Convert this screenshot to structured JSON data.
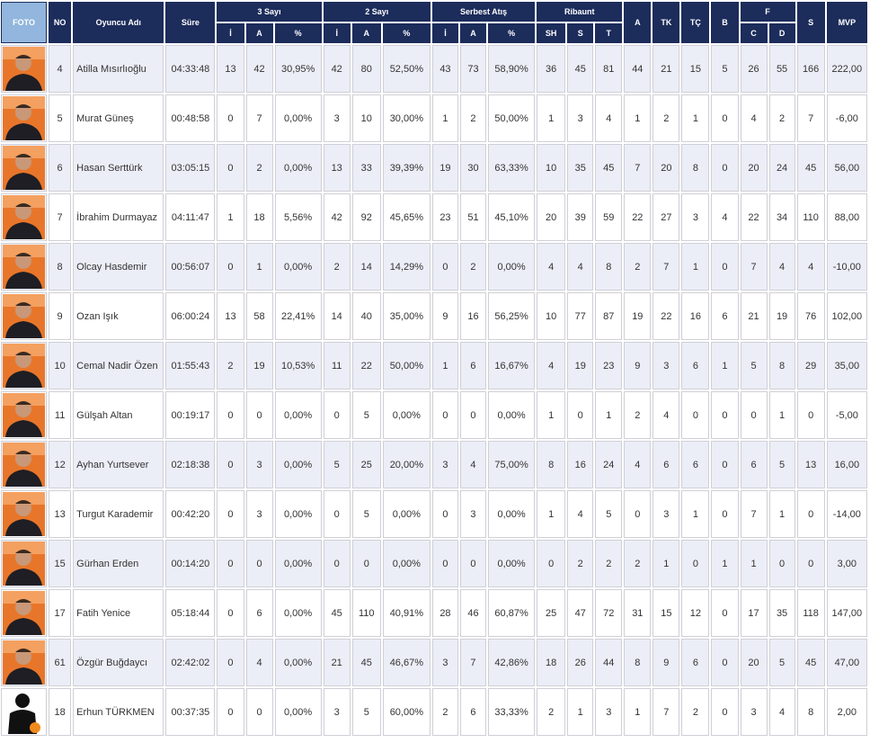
{
  "header": {
    "foto": "FOTO",
    "no": "NO",
    "name": "Oyuncu Adı",
    "time": "Süre",
    "groups": [
      "3 Sayı",
      "2 Sayı",
      "Serbest Atış",
      "Ribaunt"
    ],
    "single": [
      "A",
      "TK",
      "TÇ",
      "B"
    ],
    "fouls": "F",
    "s": "S",
    "mvp": "MVP",
    "sub": [
      "İ",
      "A",
      "%",
      "İ",
      "A",
      "%",
      "İ",
      "A",
      "%",
      "SH",
      "S",
      "T"
    ],
    "foulSub": [
      "C",
      "D"
    ]
  },
  "rows": [
    [
      "4",
      "Atilla Mısırlıoğlu",
      "04:33:48",
      "13",
      "42",
      "30,95%",
      "42",
      "80",
      "52,50%",
      "43",
      "73",
      "58,90%",
      "36",
      "45",
      "81",
      "44",
      "21",
      "15",
      "5",
      "26",
      "55",
      "166",
      "222,00"
    ],
    [
      "5",
      "Murat Güneş",
      "00:48:58",
      "0",
      "7",
      "0,00%",
      "3",
      "10",
      "30,00%",
      "1",
      "2",
      "50,00%",
      "1",
      "3",
      "4",
      "1",
      "2",
      "1",
      "0",
      "4",
      "2",
      "7",
      "-6,00"
    ],
    [
      "6",
      "Hasan Serttürk",
      "03:05:15",
      "0",
      "2",
      "0,00%",
      "13",
      "33",
      "39,39%",
      "19",
      "30",
      "63,33%",
      "10",
      "35",
      "45",
      "7",
      "20",
      "8",
      "0",
      "20",
      "24",
      "45",
      "56,00"
    ],
    [
      "7",
      "İbrahim Durmayaz",
      "04:11:47",
      "1",
      "18",
      "5,56%",
      "42",
      "92",
      "45,65%",
      "23",
      "51",
      "45,10%",
      "20",
      "39",
      "59",
      "22",
      "27",
      "3",
      "4",
      "22",
      "34",
      "110",
      "88,00"
    ],
    [
      "8",
      "Olcay Hasdemir",
      "00:56:07",
      "0",
      "1",
      "0,00%",
      "2",
      "14",
      "14,29%",
      "0",
      "2",
      "0,00%",
      "4",
      "4",
      "8",
      "2",
      "7",
      "1",
      "0",
      "7",
      "4",
      "4",
      "-10,00"
    ],
    [
      "9",
      "Ozan Işık",
      "06:00:24",
      "13",
      "58",
      "22,41%",
      "14",
      "40",
      "35,00%",
      "9",
      "16",
      "56,25%",
      "10",
      "77",
      "87",
      "19",
      "22",
      "16",
      "6",
      "21",
      "19",
      "76",
      "102,00"
    ],
    [
      "10",
      "Cemal Nadir Özen",
      "01:55:43",
      "2",
      "19",
      "10,53%",
      "11",
      "22",
      "50,00%",
      "1",
      "6",
      "16,67%",
      "4",
      "19",
      "23",
      "9",
      "3",
      "6",
      "1",
      "5",
      "8",
      "29",
      "35,00"
    ],
    [
      "11",
      "Gülşah Altan",
      "00:19:17",
      "0",
      "0",
      "0,00%",
      "0",
      "5",
      "0,00%",
      "0",
      "0",
      "0,00%",
      "1",
      "0",
      "1",
      "2",
      "4",
      "0",
      "0",
      "0",
      "1",
      "0",
      "-5,00"
    ],
    [
      "12",
      "Ayhan Yurtsever",
      "02:18:38",
      "0",
      "3",
      "0,00%",
      "5",
      "25",
      "20,00%",
      "3",
      "4",
      "75,00%",
      "8",
      "16",
      "24",
      "4",
      "6",
      "6",
      "0",
      "6",
      "5",
      "13",
      "16,00"
    ],
    [
      "13",
      "Turgut Karademir",
      "00:42:20",
      "0",
      "3",
      "0,00%",
      "0",
      "5",
      "0,00%",
      "0",
      "3",
      "0,00%",
      "1",
      "4",
      "5",
      "0",
      "3",
      "1",
      "0",
      "7",
      "1",
      "0",
      "-14,00"
    ],
    [
      "15",
      "Gürhan Erden",
      "00:14:20",
      "0",
      "0",
      "0,00%",
      "0",
      "0",
      "0,00%",
      "0",
      "0",
      "0,00%",
      "0",
      "2",
      "2",
      "2",
      "1",
      "0",
      "1",
      "1",
      "0",
      "0",
      "3,00"
    ],
    [
      "17",
      "Fatih Yenice",
      "05:18:44",
      "0",
      "6",
      "0,00%",
      "45",
      "110",
      "40,91%",
      "28",
      "46",
      "60,87%",
      "25",
      "47",
      "72",
      "31",
      "15",
      "12",
      "0",
      "17",
      "35",
      "118",
      "147,00"
    ],
    [
      "61",
      "Özgür Buğdaycı",
      "02:42:02",
      "0",
      "4",
      "0,00%",
      "21",
      "45",
      "46,67%",
      "3",
      "7",
      "42,86%",
      "18",
      "26",
      "44",
      "8",
      "9",
      "6",
      "0",
      "20",
      "5",
      "45",
      "47,00"
    ],
    [
      "18",
      "Erhun TÜRKMEN",
      "00:37:35",
      "0",
      "0",
      "0,00%",
      "3",
      "5",
      "60,00%",
      "2",
      "6",
      "33,33%",
      "2",
      "1",
      "3",
      "1",
      "7",
      "2",
      "0",
      "3",
      "4",
      "8",
      "2,00"
    ]
  ]
}
